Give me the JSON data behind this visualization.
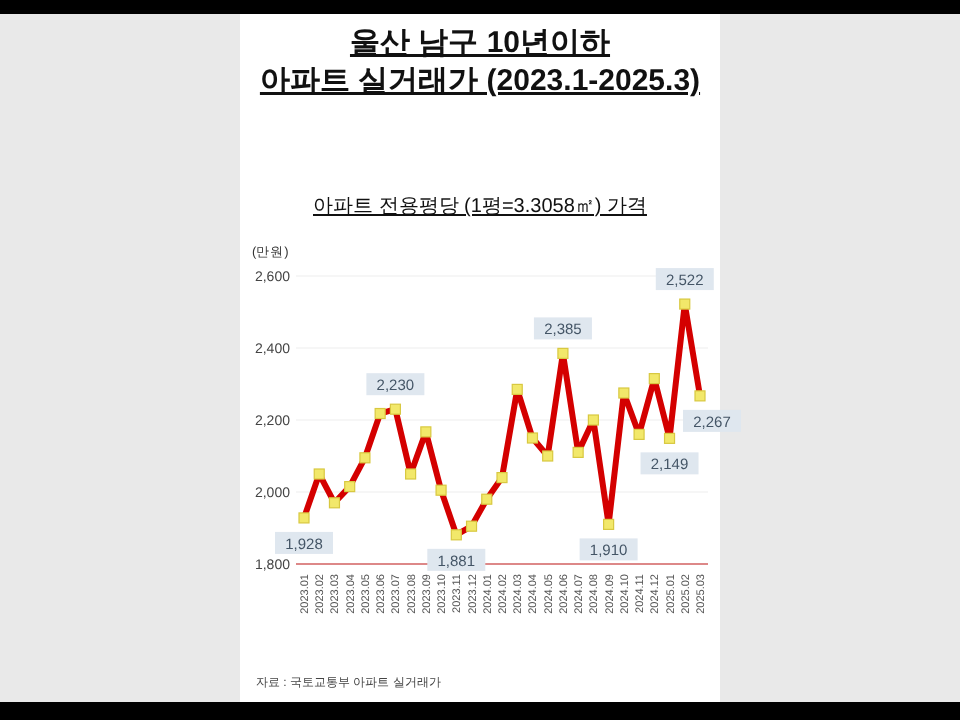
{
  "chart_data": {
    "type": "line",
    "title": "울산 남구 10년이하\n아파트 실거래가 (2023.1-2025.3)",
    "subtitle": "아파트 전용평당 (1평=3.3058㎡) 가격",
    "ylabel": "(만원)",
    "categories": [
      "2023.01",
      "2023.02",
      "2023.03",
      "2023.04",
      "2023.05",
      "2023.06",
      "2023.07",
      "2023.08",
      "2023.09",
      "2023.10",
      "2023.11",
      "2023.12",
      "2024.01",
      "2024.02",
      "2024.03",
      "2024.04",
      "2024.05",
      "2024.06",
      "2024.07",
      "2024.08",
      "2024.09",
      "2024.10",
      "2024.11",
      "2024.12",
      "2025.01",
      "2025.02",
      "2025.03"
    ],
    "series": [
      {
        "color": "#d40000",
        "values": [
          1928,
          2050,
          1970,
          2015,
          2095,
          2218,
          2230,
          2050,
          2167,
          2005,
          1881,
          1905,
          1980,
          2040,
          2285,
          2150,
          2100,
          2385,
          2110,
          2200,
          1910,
          2275,
          2160,
          2315,
          2149,
          2522,
          2267
        ],
        "value_labels": [
          "1,928",
          null,
          null,
          null,
          null,
          null,
          "2,230",
          null,
          null,
          null,
          "1,881",
          null,
          null,
          null,
          null,
          null,
          null,
          "2,385",
          null,
          null,
          "1,910",
          null,
          null,
          null,
          "2,149",
          "2,522",
          "2,267"
        ]
      }
    ],
    "ylim": [
      1800,
      2600
    ],
    "yticks": [
      {
        "value": 1800,
        "label": "1,800"
      },
      {
        "value": 2000,
        "label": "2,000"
      },
      {
        "value": 2200,
        "label": "2,200"
      },
      {
        "value": 2400,
        "label": "2,400"
      },
      {
        "value": 2600,
        "label": "2,600"
      }
    ],
    "grid": "y",
    "marker": "square",
    "line_style": "solid",
    "annotations": [
      "자료 : 국토교통부 아파트 실거래가"
    ]
  }
}
